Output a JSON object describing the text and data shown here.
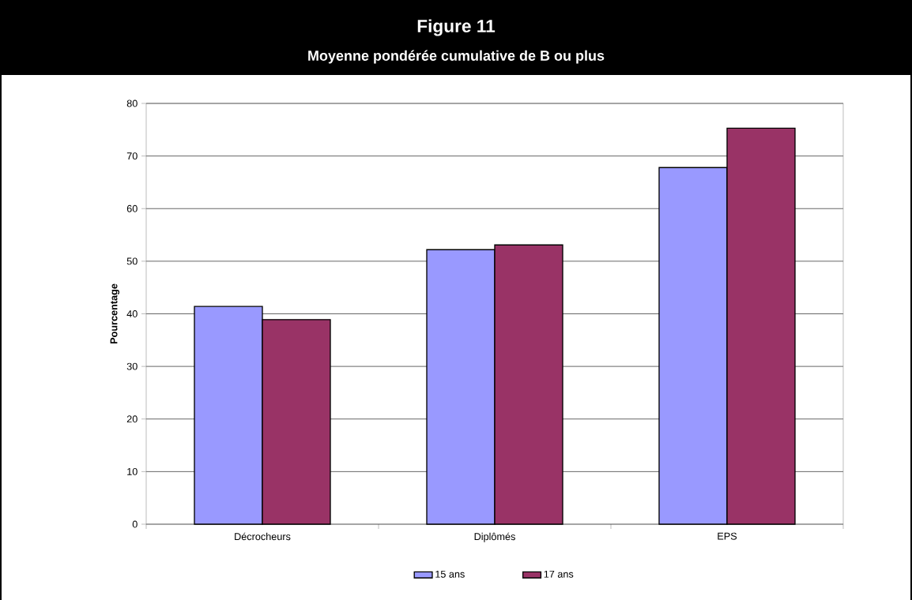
{
  "chart_data": {
    "type": "bar",
    "title": "Figure 11",
    "subtitle": "Moyenne pondérée cumulative de B ou plus",
    "ylabel": "Pourcentage",
    "categories": [
      "Décrocheurs",
      "Diplômés",
      "EPS"
    ],
    "series": [
      {
        "name": "15 ans",
        "color": "#9999ff",
        "values": [
          41.4,
          52.2,
          67.8
        ]
      },
      {
        "name": "17 ans",
        "color": "#993366",
        "values": [
          38.9,
          53.1,
          75.3
        ]
      }
    ],
    "ylim": [
      0,
      80
    ],
    "yticks": [
      0,
      10,
      20,
      30,
      40,
      50,
      60,
      70,
      80
    ],
    "grid": "y",
    "legend": "bottom"
  }
}
